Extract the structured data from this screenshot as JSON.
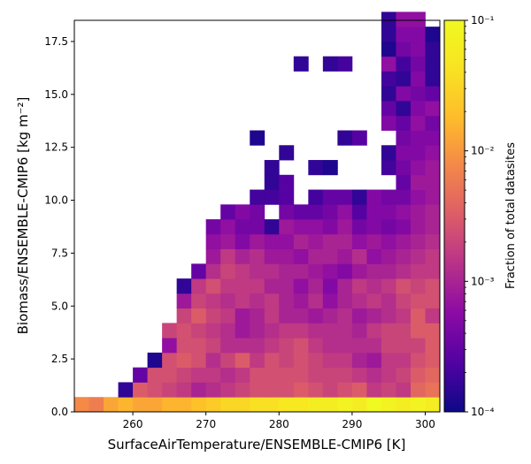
{
  "chart_data": {
    "type": "heatmap",
    "xlabel": "SurfaceAirTemperature/ENSEMBLE-CMIP6 [K]",
    "ylabel": "Biomass/ENSEMBLE-CMIP6 [kg m⁻²]",
    "colorbar_label": "Fraction of total datasites",
    "colorbar_scale": "log",
    "colorbar_range": [
      0.0001,
      0.1
    ],
    "colorbar_ticks": [
      "10⁻⁴",
      "10⁻³",
      "10⁻²",
      "10⁻¹"
    ],
    "colormap": "plasma",
    "xlim": [
      252,
      302
    ],
    "ylim": [
      0,
      18.5
    ],
    "xticks": [
      "260",
      "270",
      "280",
      "290",
      "300"
    ],
    "yticks": [
      "0.0",
      "2.5",
      "5.0",
      "7.5",
      "10.0",
      "12.5",
      "15.0",
      "17.5"
    ],
    "x_bin_start": 252,
    "x_bin_width": 2,
    "y_bin_width": 0.7,
    "bin_log10_fraction": [
      [
        -2.1,
        -2.2,
        -1.9,
        -1.8,
        -1.9,
        -1.9,
        -1.8,
        -1.8,
        -1.7,
        -1.6,
        -1.5,
        -1.5,
        -1.4,
        -1.4,
        -1.3,
        -1.3,
        -1.2,
        -1.2,
        -1.1,
        -1.2,
        -1.0,
        -1.1,
        -1.2,
        -1.1,
        -1.2
      ],
      [
        null,
        null,
        null,
        -3.8,
        -2.5,
        -2.6,
        -2.7,
        -2.8,
        -3.0,
        -2.9,
        -2.8,
        -2.7,
        -2.6,
        -2.6,
        -2.6,
        -2.5,
        -2.6,
        -2.7,
        -2.6,
        -2.5,
        -2.8,
        -2.7,
        -2.8,
        -2.4,
        -2.3
      ],
      [
        null,
        null,
        null,
        null,
        -3.5,
        -2.6,
        -2.6,
        -2.7,
        -2.8,
        -2.8,
        -2.9,
        -2.8,
        -2.6,
        -2.6,
        -2.6,
        -2.6,
        -2.7,
        -2.7,
        -2.7,
        -2.8,
        -2.9,
        -2.8,
        -2.7,
        -2.5,
        -2.4
      ],
      [
        null,
        null,
        null,
        null,
        null,
        -3.9,
        -2.6,
        -2.5,
        -2.6,
        -2.9,
        -2.7,
        -2.5,
        -2.8,
        -2.6,
        -2.7,
        -2.6,
        -2.7,
        -2.8,
        -2.8,
        -3.0,
        -3.1,
        -2.8,
        -2.8,
        -2.6,
        -2.5
      ],
      [
        null,
        null,
        null,
        null,
        null,
        null,
        -3.2,
        -2.6,
        -2.6,
        -2.7,
        -2.9,
        -2.9,
        -2.9,
        -2.8,
        -2.7,
        -2.6,
        -2.8,
        -2.9,
        -2.9,
        -2.9,
        -2.9,
        -2.7,
        -2.7,
        -2.7,
        -2.5
      ],
      [
        null,
        null,
        null,
        null,
        null,
        null,
        -2.7,
        -2.6,
        -2.7,
        -2.8,
        -2.9,
        -3.1,
        -3.0,
        -2.9,
        -2.8,
        -2.8,
        -2.9,
        -2.9,
        -2.9,
        -3.0,
        -2.8,
        -2.7,
        -2.7,
        -2.5,
        -2.5
      ],
      [
        null,
        null,
        null,
        null,
        null,
        null,
        null,
        -2.7,
        -2.5,
        -2.7,
        -2.8,
        -3.1,
        -3.0,
        -2.8,
        -3.0,
        -3.0,
        -3.1,
        -3.0,
        -2.9,
        -3.1,
        -3.0,
        -2.9,
        -2.8,
        -2.5,
        -2.8
      ],
      [
        null,
        null,
        null,
        null,
        null,
        null,
        null,
        -3.1,
        -2.7,
        -2.8,
        -2.9,
        -2.8,
        -2.9,
        -2.8,
        -3.0,
        -3.1,
        -2.9,
        -3.2,
        -3.0,
        -2.9,
        -2.8,
        -2.9,
        -2.7,
        -2.6,
        -2.6
      ],
      [
        null,
        null,
        null,
        null,
        null,
        null,
        null,
        -3.8,
        -2.8,
        -2.6,
        -2.8,
        -2.8,
        -2.8,
        -3.0,
        -3.0,
        -3.2,
        -3.0,
        -3.3,
        -3.0,
        -2.8,
        -2.9,
        -2.8,
        -2.6,
        -2.7,
        -2.6
      ],
      [
        null,
        null,
        null,
        null,
        null,
        null,
        null,
        null,
        -3.5,
        -2.9,
        -2.7,
        -2.8,
        -2.9,
        -2.9,
        -3.0,
        -3.0,
        -3.1,
        -3.2,
        -3.3,
        -3.1,
        -3.0,
        -3.0,
        -2.9,
        -2.8,
        -2.8
      ],
      [
        null,
        null,
        null,
        null,
        null,
        null,
        null,
        null,
        null,
        -3.1,
        -2.8,
        -3.0,
        -2.9,
        -3.1,
        -3.1,
        -3.2,
        -3.0,
        -3.0,
        -3.1,
        -2.9,
        -3.2,
        -3.1,
        -3.0,
        -2.9,
        -2.8
      ],
      [
        null,
        null,
        null,
        null,
        null,
        null,
        null,
        null,
        null,
        -3.2,
        -3.1,
        -3.3,
        -3.1,
        -3.2,
        -3.2,
        -3.0,
        -3.1,
        -3.0,
        -3.0,
        -3.2,
        -3.1,
        -3.2,
        -3.1,
        -3.0,
        -2.9
      ],
      [
        null,
        null,
        null,
        null,
        null,
        null,
        null,
        null,
        null,
        -3.4,
        -3.2,
        -3.4,
        -3.4,
        -3.8,
        -3.1,
        -3.2,
        -3.2,
        -3.3,
        -3.1,
        -3.4,
        -3.3,
        -3.4,
        -3.3,
        -3.1,
        -3.0
      ],
      [
        null,
        null,
        null,
        null,
        null,
        null,
        null,
        null,
        null,
        null,
        -3.5,
        -3.3,
        -3.4,
        null,
        -3.4,
        -3.5,
        -3.5,
        -3.4,
        -3.2,
        -3.6,
        -3.3,
        -3.3,
        -3.2,
        -3.1,
        -3.0
      ],
      [
        null,
        null,
        null,
        null,
        null,
        null,
        null,
        null,
        null,
        null,
        null,
        null,
        -3.7,
        -3.7,
        -3.6,
        null,
        -3.7,
        -3.5,
        -3.5,
        -3.8,
        -3.3,
        -3.4,
        -3.4,
        -3.2,
        -3.1
      ],
      [
        null,
        null,
        null,
        null,
        null,
        null,
        null,
        null,
        null,
        null,
        null,
        null,
        null,
        -3.8,
        -3.6,
        null,
        null,
        null,
        null,
        null,
        null,
        null,
        -3.5,
        -3.1,
        -3.1
      ],
      [
        null,
        null,
        null,
        null,
        null,
        null,
        null,
        null,
        null,
        null,
        null,
        null,
        null,
        -3.8,
        null,
        null,
        -3.8,
        -3.9,
        null,
        null,
        null,
        -3.7,
        -3.4,
        -3.2,
        -3.1
      ],
      [
        null,
        null,
        null,
        null,
        null,
        null,
        null,
        null,
        null,
        null,
        null,
        null,
        null,
        null,
        -3.8,
        null,
        null,
        null,
        null,
        null,
        null,
        -3.8,
        -3.3,
        -3.3,
        -3.2
      ],
      [
        null,
        null,
        null,
        null,
        null,
        null,
        null,
        null,
        null,
        null,
        null,
        null,
        -3.9,
        null,
        null,
        null,
        null,
        null,
        -3.8,
        -3.6,
        null,
        null,
        -3.4,
        -3.3,
        -3.3
      ],
      [
        null,
        null,
        null,
        null,
        null,
        null,
        null,
        null,
        null,
        null,
        null,
        null,
        null,
        null,
        null,
        null,
        null,
        null,
        null,
        null,
        null,
        -3.3,
        -3.5,
        -3.2,
        -3.4
      ],
      [
        null,
        null,
        null,
        null,
        null,
        null,
        null,
        null,
        null,
        null,
        null,
        null,
        null,
        null,
        null,
        null,
        null,
        null,
        null,
        null,
        null,
        -3.5,
        -3.8,
        -3.3,
        -3.2
      ],
      [
        null,
        null,
        null,
        null,
        null,
        null,
        null,
        null,
        null,
        null,
        null,
        null,
        null,
        null,
        null,
        null,
        null,
        null,
        null,
        null,
        null,
        -3.8,
        -3.3,
        -3.4,
        -3.5
      ],
      [
        null,
        null,
        null,
        null,
        null,
        null,
        null,
        null,
        null,
        null,
        null,
        null,
        null,
        null,
        null,
        null,
        null,
        null,
        null,
        null,
        null,
        -3.7,
        -3.8,
        -3.3,
        -3.8
      ],
      [
        null,
        null,
        null,
        null,
        null,
        null,
        null,
        null,
        null,
        null,
        null,
        null,
        null,
        null,
        null,
        -3.8,
        null,
        -3.8,
        -3.7,
        null,
        null,
        -3.2,
        -3.7,
        -3.4,
        -3.8
      ],
      [
        null,
        null,
        null,
        null,
        null,
        null,
        null,
        null,
        null,
        null,
        null,
        null,
        null,
        null,
        null,
        null,
        null,
        null,
        null,
        null,
        null,
        -3.9,
        -3.4,
        -3.3,
        -3.8
      ],
      [
        null,
        null,
        null,
        null,
        null,
        null,
        null,
        null,
        null,
        null,
        null,
        null,
        null,
        null,
        null,
        null,
        null,
        null,
        null,
        null,
        null,
        -3.8,
        -3.3,
        -3.3,
        -3.9
      ],
      [
        null,
        null,
        null,
        null,
        null,
        null,
        null,
        null,
        null,
        null,
        null,
        null,
        null,
        null,
        null,
        null,
        null,
        null,
        null,
        null,
        null,
        -3.8,
        -3.2,
        -3.2,
        null
      ]
    ]
  }
}
